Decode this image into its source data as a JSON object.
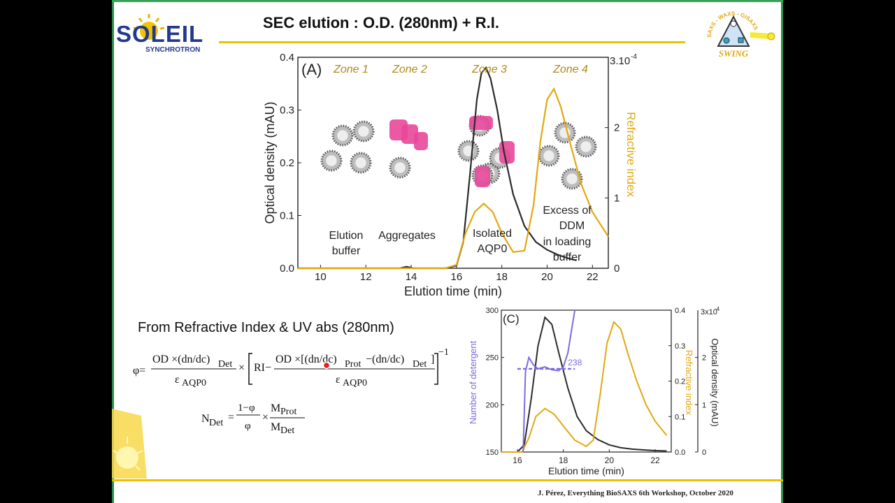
{
  "slide": {
    "title": "SEC elution : O.D. (280nm) + R.I.",
    "footer": "J. Pérez, Everything BioSAXS 6th Workshop, October 2020",
    "logo_left": {
      "main": "SOLEIL",
      "sub": "SYNCHROTRON"
    },
    "logo_right": {
      "name": "SWING",
      "ring": "SAXS - WAXS - GISAXS"
    },
    "colors": {
      "frame": "#2d8f4a",
      "rule": "#e8c200",
      "od_curve": "#2b2b2b",
      "ri_curve": "#e3a812",
      "detergent_curve": "#7e6ae0",
      "protein": "#e8479a"
    }
  },
  "figure_a": {
    "panel_label": "(A)",
    "zones": [
      "Zone 1",
      "Zone 2",
      "Zone 3",
      "Zone 4"
    ],
    "annotations": [
      "Elution",
      "buffer",
      "Aggregates",
      "Isolated",
      "AQP0",
      "Excess of",
      "DDM",
      "in loading",
      "buffer"
    ],
    "xlabel": "Elution time (min)",
    "ylabel_left": "Optical density (mAU)",
    "ylabel_right": "Refractive index",
    "x_ticks": [
      "10",
      "12",
      "14",
      "16",
      "18",
      "20",
      "22"
    ],
    "y_left_ticks": [
      "0.0",
      "0.1",
      "0.2",
      "0.3",
      "0.4"
    ],
    "y_right_ticks": [
      "0",
      "1",
      "2"
    ],
    "y_right_top": "3.10",
    "y_right_top_exp": "-4"
  },
  "figure_c": {
    "panel_label": "(C)",
    "xlabel": "Elution time (min)",
    "ylabel_left": "Number of detergent",
    "ylabel_mid": "Refractive index",
    "ylabel_right": "Optical density (mAU)",
    "x_ticks": [
      "16",
      "18",
      "20",
      "22"
    ],
    "y_left_ticks": [
      "150",
      "200",
      "250",
      "300"
    ],
    "y_mid_ticks": [
      "0",
      "1",
      "2"
    ],
    "y_mid_top": "3x10",
    "y_mid_top_exp": "-4",
    "y_right_ticks": [
      "0.0",
      "0.1",
      "0.2",
      "0.3",
      "0.4"
    ],
    "annotation": "238"
  },
  "equation": {
    "heading": "From Refractive Index & UV abs (280nm)",
    "phi": "φ=",
    "od_dn_dc": "OD ×(dn/dc)",
    "det": "Det",
    "eps": "ε",
    "aqp0": "AQP0",
    "times": "×",
    "ri": "RI−",
    "od_bracket": "OD ×[(dn/dc)",
    "prot": "Prot",
    "minus_dn_dc": "−(dn/dc)",
    "close": "]",
    "exp": "−1",
    "ndet": "N",
    "one_minus_phi": "1−φ",
    "phi_var": "φ",
    "mprot": "M",
    "mdet": "M"
  },
  "chart_data": [
    {
      "type": "line",
      "title": "",
      "xlabel": "Elution time (min)",
      "ylabel": "Optical density (mAU)",
      "y2label": "Refractive index",
      "xlim": [
        9,
        22.7
      ],
      "ylim": [
        0,
        0.4
      ],
      "y2lim": [
        0,
        3
      ],
      "series": [
        {
          "axis": "left",
          "x": [
            9.0,
            13.5,
            13.8,
            14.1,
            15.5,
            16.0,
            16.3,
            16.6,
            16.9,
            17.1,
            17.3,
            17.5,
            17.8,
            18.1,
            18.5,
            19.0,
            19.5,
            20.0,
            20.5,
            21.0,
            21.3
          ],
          "y": [
            0.0,
            0.0,
            0.003,
            0.0,
            0.0,
            0.005,
            0.05,
            0.18,
            0.32,
            0.37,
            0.38,
            0.36,
            0.3,
            0.22,
            0.14,
            0.08,
            0.05,
            0.035,
            0.025,
            0.018,
            0.015
          ]
        },
        {
          "axis": "right",
          "x": [
            9.0,
            15.5,
            16.0,
            16.4,
            16.8,
            17.2,
            17.6,
            18.0,
            18.5,
            19.0,
            19.4,
            19.7,
            20.0,
            20.3,
            20.6,
            21.0,
            21.5,
            22.0,
            22.7
          ],
          "y": [
            0.0,
            0.0,
            0.05,
            0.5,
            0.8,
            0.92,
            0.8,
            0.5,
            0.23,
            0.25,
            0.9,
            1.8,
            2.4,
            2.55,
            2.3,
            1.8,
            1.2,
            0.8,
            0.45
          ]
        }
      ]
    },
    {
      "type": "line",
      "title": "",
      "xlabel": "Elution time (min)",
      "ylabel": "Number of detergent",
      "y2label": "Refractive index",
      "y3label": "Optical density (mAU)",
      "xlim": [
        15.3,
        22.7
      ],
      "ylim": [
        150,
        300
      ],
      "y2lim": [
        0,
        3
      ],
      "y3lim": [
        0,
        0.4
      ],
      "series": [
        {
          "axis": "right_od",
          "x": [
            15.3,
            16.0,
            16.3,
            16.6,
            16.9,
            17.2,
            17.5,
            17.8,
            18.2,
            18.6,
            19.0,
            19.5,
            20.0,
            20.5,
            21.0,
            21.5,
            22.0,
            22.5
          ],
          "y": [
            0.0,
            0.0,
            0.02,
            0.15,
            0.3,
            0.38,
            0.36,
            0.28,
            0.18,
            0.1,
            0.06,
            0.035,
            0.02,
            0.012,
            0.008,
            0.006,
            0.004,
            0.003
          ]
        },
        {
          "axis": "ri",
          "x": [
            15.3,
            16.2,
            16.5,
            16.8,
            17.2,
            17.6,
            18.0,
            18.5,
            19.0,
            19.3,
            19.6,
            19.9,
            20.2,
            20.5,
            20.8,
            21.2,
            21.6,
            22.0,
            22.5
          ],
          "y": [
            0.0,
            0.0,
            0.3,
            0.75,
            0.92,
            0.8,
            0.55,
            0.25,
            0.12,
            0.25,
            1.2,
            2.3,
            2.75,
            2.6,
            2.1,
            1.5,
            1.0,
            0.65,
            0.35
          ]
        },
        {
          "axis": "left",
          "x": [
            16.25,
            16.35,
            16.5,
            16.7,
            16.9,
            17.2,
            17.5,
            17.8,
            18.0,
            18.2,
            18.35,
            18.5
          ],
          "y": [
            150,
            235,
            250,
            242,
            238,
            240,
            237,
            236,
            240,
            255,
            278,
            300
          ]
        },
        {
          "axis": "left",
          "dashed": true,
          "x": [
            16.0,
            18.5
          ],
          "y": [
            238,
            238
          ]
        }
      ]
    }
  ]
}
